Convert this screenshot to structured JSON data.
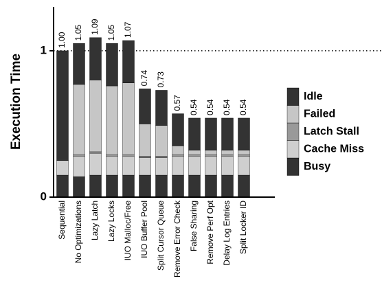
{
  "chart_data": {
    "type": "stacked_bar",
    "ylabel": "Execution Time",
    "categories": [
      "Sequential",
      "No Optimizations",
      "Lazy Latch",
      "Lazy Locks",
      "IUO Malloc/Free",
      "IUO Buffer Pool",
      "Split Cursor Queue",
      "Remove Error Check",
      "False Sharing",
      "Remove Perf Opt",
      "Delay Log Entries",
      "Split Locker ID"
    ],
    "series": [
      {
        "name": "Busy",
        "color": "#333333",
        "values": [
          0.15,
          0.14,
          0.15,
          0.15,
          0.15,
          0.15,
          0.15,
          0.15,
          0.15,
          0.15,
          0.15,
          0.15
        ]
      },
      {
        "name": "Cache Miss",
        "color": "#cfcfcf",
        "values": [
          0.1,
          0.14,
          0.15,
          0.13,
          0.13,
          0.12,
          0.12,
          0.13,
          0.13,
          0.13,
          0.13,
          0.13
        ]
      },
      {
        "name": "Latch Stall",
        "color": "#999999",
        "values": [
          0,
          0.01,
          0.01,
          0.01,
          0.01,
          0.01,
          0.01,
          0.01,
          0.01,
          0.01,
          0.01,
          0.01
        ]
      },
      {
        "name": "Failed",
        "color": "#c6c6c6",
        "values": [
          0,
          0.48,
          0.49,
          0.47,
          0.49,
          0.22,
          0.21,
          0.06,
          0.03,
          0.03,
          0.03,
          0.03
        ]
      },
      {
        "name": "Idle",
        "color": "#333333",
        "values": [
          0.75,
          0.28,
          0.29,
          0.29,
          0.29,
          0.24,
          0.24,
          0.22,
          0.22,
          0.22,
          0.22,
          0.22
        ]
      }
    ],
    "totals": [
      1.0,
      1.05,
      1.09,
      1.05,
      1.07,
      0.74,
      0.73,
      0.57,
      0.54,
      0.54,
      0.54,
      0.54
    ],
    "total_labels": [
      "1.00",
      "1.05",
      "1.09",
      "1.05",
      "1.07",
      "0.74",
      "0.73",
      "0.57",
      "0.54",
      "0.54",
      "0.54",
      "0.54"
    ],
    "ylim": [
      0,
      1.3
    ],
    "yticks": [
      0,
      1
    ],
    "reference_line": 1
  }
}
